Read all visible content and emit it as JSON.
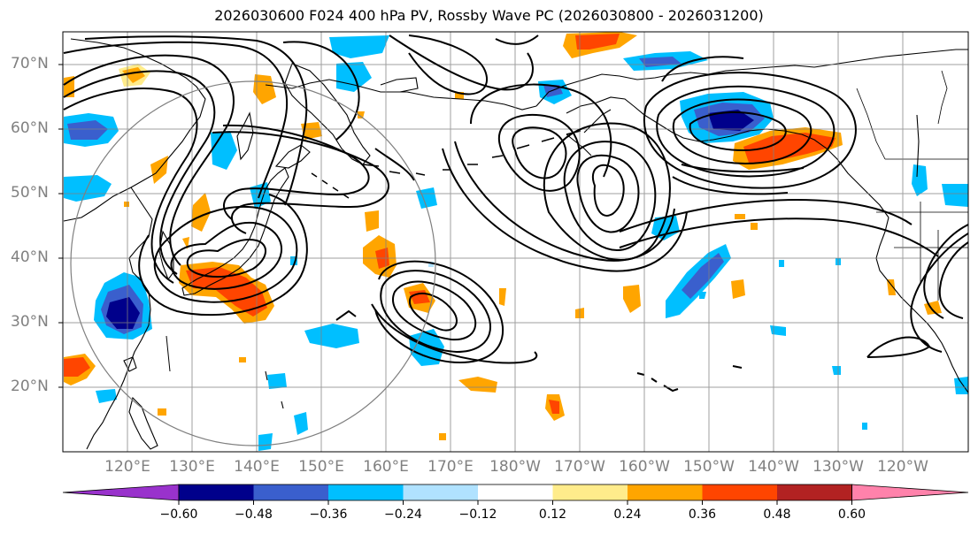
{
  "title": "2026030600 F024 400 hPa PV, Rossby Wave PC (2026030800 - 2026031200)",
  "latitude_labels": [
    "70°N",
    "60°N",
    "50°N",
    "40°N",
    "30°N",
    "20°N"
  ],
  "longitude_labels": [
    "120°E",
    "130°E",
    "140°E",
    "150°E",
    "160°E",
    "170°E",
    "180°W",
    "170°W",
    "160°W",
    "150°W",
    "140°W",
    "130°W",
    "120°W"
  ],
  "colorbar": {
    "ticks": [
      "−0.60",
      "−0.48",
      "−0.36",
      "−0.24",
      "−0.12",
      "0.12",
      "0.24",
      "0.36",
      "0.48",
      "0.60"
    ],
    "colors": [
      "#9932cc",
      "#00008b",
      "#3a5fcd",
      "#00bfff",
      "#b0e2ff",
      "#ffffff",
      "#ffec8b",
      "#ffa500",
      "#ff4500",
      "#b22222",
      "#ff82ab"
    ]
  },
  "shading_colors": {
    "dark_blue": "#00008b",
    "blue": "#3a5fcd",
    "light_blue": "#00bfff",
    "pale_blue": "#b0e2ff",
    "pale_yellow": "#ffec8b",
    "orange": "#ffa500",
    "red_orange": "#ff4500"
  }
}
